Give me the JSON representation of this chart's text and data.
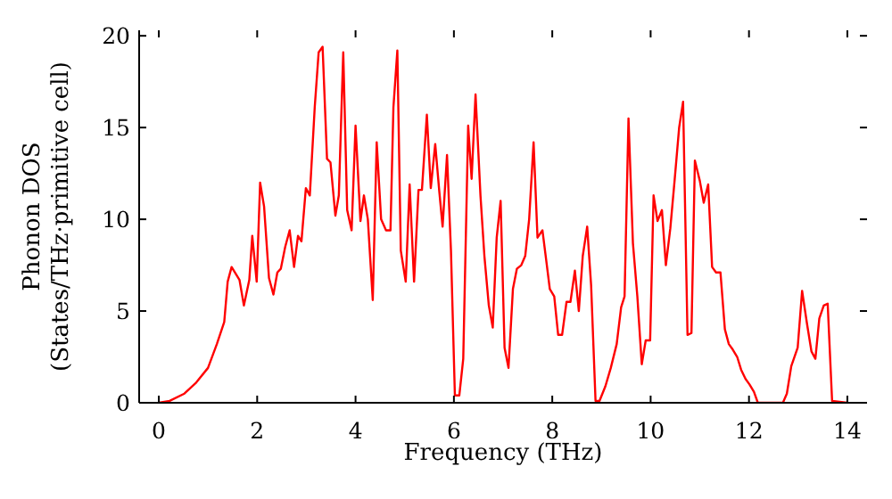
{
  "chart_data": {
    "type": "line",
    "xlabel": "Frequency (THz)",
    "ylabel": "Phonon DOS\n(States/THz·primitive cell)",
    "xlim": [
      -0.4,
      14.4
    ],
    "ylim": [
      0,
      20.3
    ],
    "xticks": [
      0,
      2,
      4,
      6,
      8,
      10,
      12,
      14
    ],
    "yticks": [
      0,
      5,
      10,
      15,
      20
    ],
    "grid": false,
    "marker": "none",
    "line_style": "solid",
    "series": [
      {
        "color": "#ff0000",
        "x": [
          0,
          0.22,
          0.52,
          0.76,
          1.0,
          1.18,
          1.33,
          1.4,
          1.48,
          1.64,
          1.73,
          1.84,
          1.9,
          1.99,
          2.06,
          2.14,
          2.24,
          2.33,
          2.41,
          2.48,
          2.57,
          2.66,
          2.75,
          2.83,
          2.9,
          2.99,
          3.07,
          3.17,
          3.25,
          3.33,
          3.42,
          3.49,
          3.59,
          3.66,
          3.75,
          3.83,
          3.92,
          4.0,
          4.1,
          4.17,
          4.25,
          4.35,
          4.43,
          4.52,
          4.62,
          4.71,
          4.77,
          4.85,
          4.92,
          5.02,
          5.1,
          5.19,
          5.28,
          5.35,
          5.45,
          5.53,
          5.62,
          5.7,
          5.77,
          5.86,
          5.94,
          6.02,
          6.11,
          6.19,
          6.29,
          6.36,
          6.44,
          6.54,
          6.62,
          6.71,
          6.79,
          6.87,
          6.95,
          7.03,
          7.11,
          7.2,
          7.28,
          7.37,
          7.45,
          7.53,
          7.62,
          7.7,
          7.8,
          7.88,
          7.95,
          8.04,
          8.12,
          8.2,
          8.29,
          8.37,
          8.46,
          8.54,
          8.62,
          8.71,
          8.79,
          8.88,
          8.96,
          9.08,
          9.19,
          9.31,
          9.4,
          9.47,
          9.55,
          9.64,
          9.73,
          9.82,
          9.9,
          9.99,
          10.06,
          10.14,
          10.23,
          10.31,
          10.4,
          10.49,
          10.58,
          10.66,
          10.75,
          10.83,
          10.9,
          11.0,
          11.08,
          11.17,
          11.25,
          11.33,
          11.42,
          11.51,
          11.59,
          11.67,
          11.76,
          11.84,
          11.93,
          12.01,
          12.1,
          12.18,
          12.69,
          12.77,
          12.86,
          12.99,
          13.08,
          13.18,
          13.27,
          13.35,
          13.43,
          13.52,
          13.6,
          13.69,
          14.0
        ],
        "values": [
          0,
          0.1,
          0.5,
          1.1,
          1.9,
          3.2,
          4.4,
          6.6,
          7.4,
          6.7,
          5.3,
          6.7,
          9.1,
          6.6,
          12.0,
          10.7,
          6.8,
          5.9,
          7.1,
          7.3,
          8.5,
          9.4,
          7.4,
          9.1,
          8.8,
          11.7,
          11.3,
          16.1,
          19.1,
          19.4,
          13.3,
          13.1,
          10.2,
          11.3,
          19.1,
          10.5,
          9.4,
          15.1,
          9.9,
          11.3,
          10.0,
          5.6,
          14.2,
          10.0,
          9.4,
          9.4,
          16.1,
          19.2,
          8.3,
          6.6,
          11.9,
          6.6,
          11.6,
          11.6,
          15.7,
          11.7,
          14.1,
          11.6,
          9.6,
          13.5,
          8.3,
          0.4,
          0.4,
          2.4,
          15.1,
          12.2,
          16.8,
          11.3,
          8.0,
          5.3,
          4.1,
          9.0,
          11.0,
          3.0,
          1.9,
          6.2,
          7.3,
          7.5,
          8.0,
          10.0,
          14.2,
          9.0,
          9.4,
          7.7,
          6.2,
          5.8,
          3.7,
          3.7,
          5.5,
          5.5,
          7.2,
          5.0,
          8.0,
          9.6,
          6.4,
          0.1,
          0.1,
          0.9,
          1.9,
          3.2,
          5.2,
          5.8,
          15.5,
          8.7,
          5.8,
          2.1,
          3.4,
          3.4,
          11.3,
          9.9,
          10.5,
          7.5,
          9.5,
          12.2,
          15.0,
          16.4,
          3.7,
          3.8,
          13.2,
          12.1,
          10.9,
          11.9,
          7.4,
          7.1,
          7.1,
          4.0,
          3.2,
          2.9,
          2.5,
          1.8,
          1.3,
          1.0,
          0.6,
          0,
          0,
          0.5,
          2.0,
          3.0,
          6.1,
          4.3,
          2.8,
          2.4,
          4.6,
          5.3,
          5.4,
          0.1,
          0
        ]
      }
    ]
  }
}
